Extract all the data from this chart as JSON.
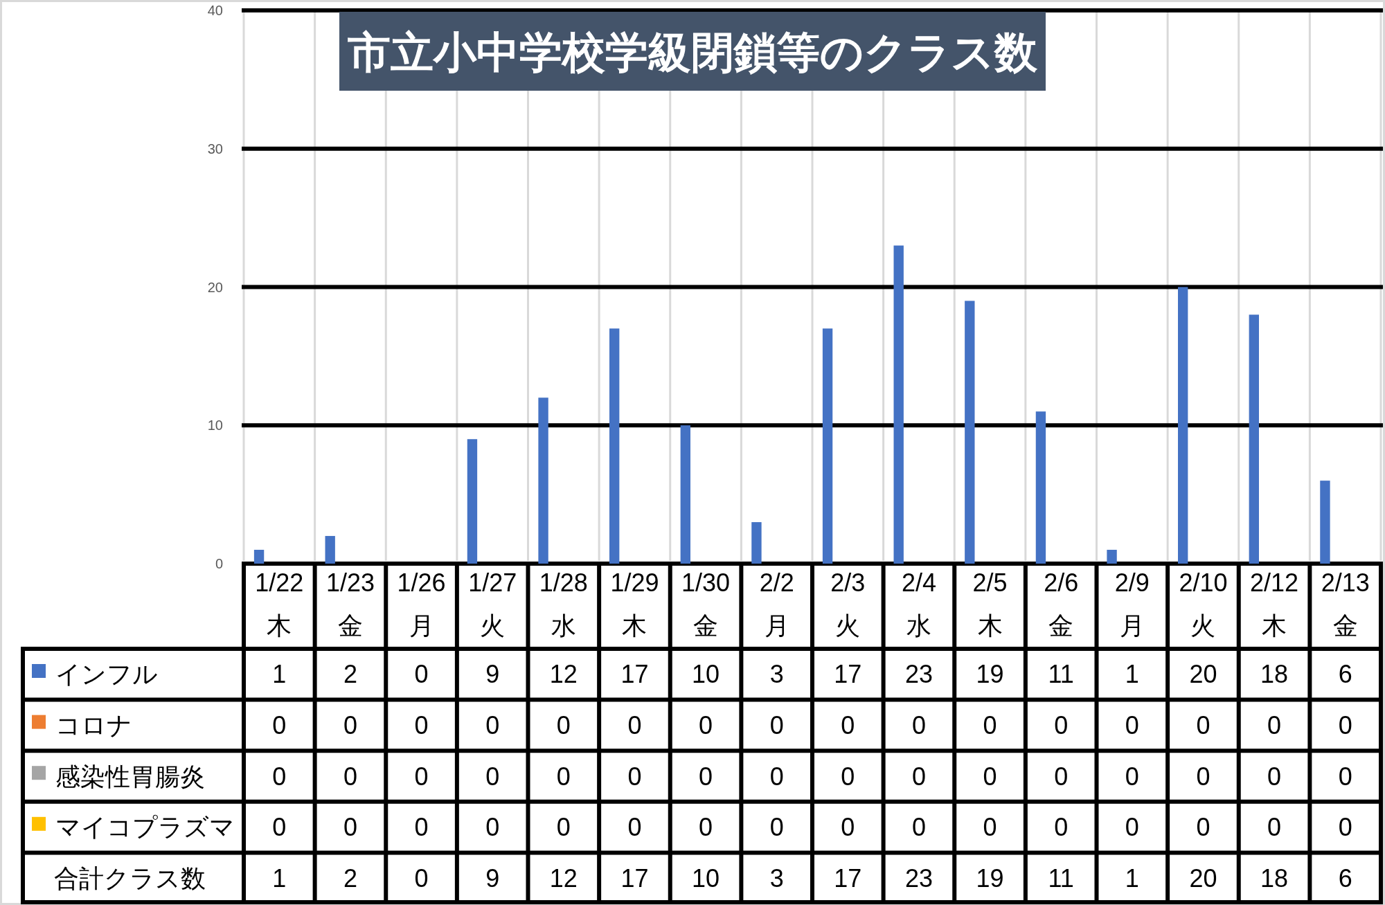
{
  "chart_data": {
    "type": "bar",
    "title": "市立小中学校学級閉鎖等のクラス数",
    "categories": [
      "1/22\n木",
      "1/23\n金",
      "1/26\n月",
      "1/27\n火",
      "1/28\n水",
      "1/29\n木",
      "1/30\n金",
      "2/2\n月",
      "2/3\n火",
      "2/4\n水",
      "2/5\n木",
      "2/6\n金",
      "2/9\n月",
      "2/10\n火",
      "2/12\n木",
      "2/13\n金"
    ],
    "series": [
      {
        "name": "インフル",
        "color": "#4472c4",
        "values": [
          1,
          2,
          0,
          9,
          12,
          17,
          10,
          3,
          17,
          23,
          19,
          11,
          1,
          20,
          18,
          6
        ]
      },
      {
        "name": "コロナ",
        "color": "#ed7d31",
        "values": [
          0,
          0,
          0,
          0,
          0,
          0,
          0,
          0,
          0,
          0,
          0,
          0,
          0,
          0,
          0,
          0
        ]
      },
      {
        "name": "感染性胃腸炎",
        "color": "#a5a5a5",
        "values": [
          0,
          0,
          0,
          0,
          0,
          0,
          0,
          0,
          0,
          0,
          0,
          0,
          0,
          0,
          0,
          0
        ]
      },
      {
        "name": "マイコプラズマ",
        "color": "#ffc000",
        "values": [
          0,
          0,
          0,
          0,
          0,
          0,
          0,
          0,
          0,
          0,
          0,
          0,
          0,
          0,
          0,
          0
        ]
      }
    ],
    "ylim": [
      0,
      40
    ],
    "yticks": [
      0,
      10,
      20,
      30,
      40
    ],
    "grid": true,
    "legend": "bottom left",
    "data_labels": true,
    "annotations": [
      "合計クラス数 1 2 0 9 12 17 10 3 17 23 19 11 1 20 18 6"
    ]
  }
}
